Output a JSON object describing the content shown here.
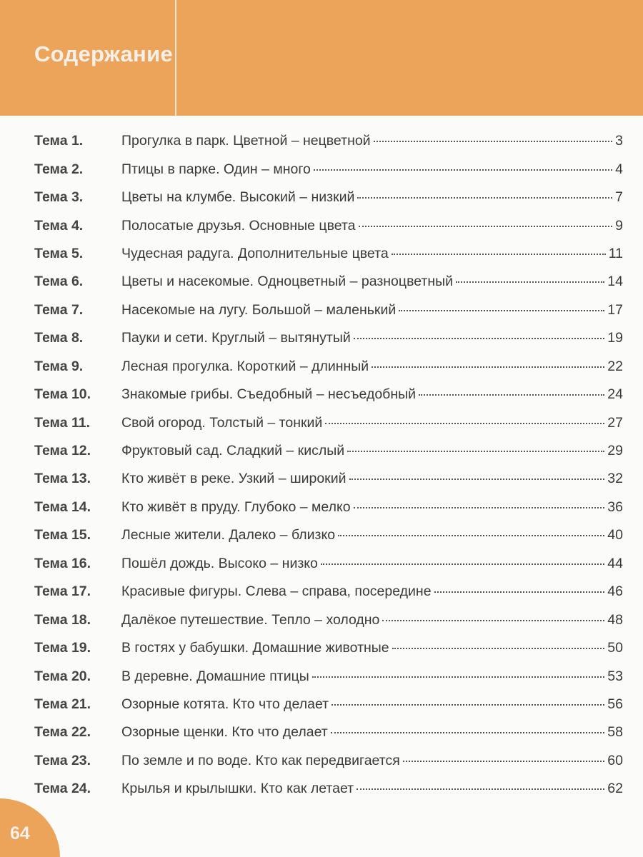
{
  "header": {
    "title": "Содержание",
    "color": "#eba45a"
  },
  "toc": [
    {
      "label": "Тема 1.",
      "title": "Прогулка в парк. Цветной – нецветной",
      "page": "3"
    },
    {
      "label": "Тема 2.",
      "title": "Птицы в парке. Один – много",
      "page": "4"
    },
    {
      "label": "Тема 3.",
      "title": "Цветы на клумбе. Высокий – низкий",
      "page": "7"
    },
    {
      "label": "Тема 4.",
      "title": "Полосатые друзья. Основные цвета",
      "page": "9"
    },
    {
      "label": "Тема 5.",
      "title": "Чудесная радуга. Дополнительные цвета",
      "page": "11"
    },
    {
      "label": "Тема 6.",
      "title": "Цветы и насекомые. Одноцветный – разноцветный",
      "page": "14"
    },
    {
      "label": "Тема 7.",
      "title": "Насекомые на лугу. Большой – маленький",
      "page": "17"
    },
    {
      "label": "Тема 8.",
      "title": "Пауки и сети. Круглый – вытянутый",
      "page": "19"
    },
    {
      "label": "Тема 9.",
      "title": "Лесная прогулка. Короткий – длинный",
      "page": "22"
    },
    {
      "label": "Тема 10.",
      "title": "Знакомые грибы. Съедобный – несъедобный",
      "page": "24"
    },
    {
      "label": "Тема 11.",
      "title": "Свой огород. Толстый – тонкий",
      "page": "27"
    },
    {
      "label": "Тема 12.",
      "title": "Фруктовый сад. Сладкий – кислый",
      "page": "29"
    },
    {
      "label": "Тема 13.",
      "title": "Кто живёт в реке. Узкий – широкий",
      "page": "32"
    },
    {
      "label": "Тема 14.",
      "title": "Кто живёт в пруду. Глубоко – мелко",
      "page": "36"
    },
    {
      "label": "Тема 15.",
      "title": "Лесные жители. Далеко – близко",
      "page": "40"
    },
    {
      "label": "Тема 16.",
      "title": "Пошёл дождь. Высоко – низко",
      "page": "44"
    },
    {
      "label": "Тема 17.",
      "title": "Красивые фигуры. Слева – справа, посередине",
      "page": "46"
    },
    {
      "label": "Тема 18.",
      "title": "Далёкое путешествие. Тепло – холодно",
      "page": "48"
    },
    {
      "label": "Тема 19.",
      "title": "В гостях у бабушки. Домашние животные",
      "page": "50"
    },
    {
      "label": "Тема 20.",
      "title": "В деревне. Домашние птицы",
      "page": "53"
    },
    {
      "label": "Тема 21.",
      "title": "Озорные котята. Кто что делает",
      "page": "56"
    },
    {
      "label": "Тема 22.",
      "title": "Озорные щенки. Кто что делает",
      "page": "58"
    },
    {
      "label": "Тема 23.",
      "title": "По земле и по воде. Кто как передвигается",
      "page": "60"
    },
    {
      "label": "Тема 24.",
      "title": "Крылья и крылышки. Кто как летает",
      "page": "62"
    }
  ],
  "footer": {
    "page_number": "64"
  }
}
